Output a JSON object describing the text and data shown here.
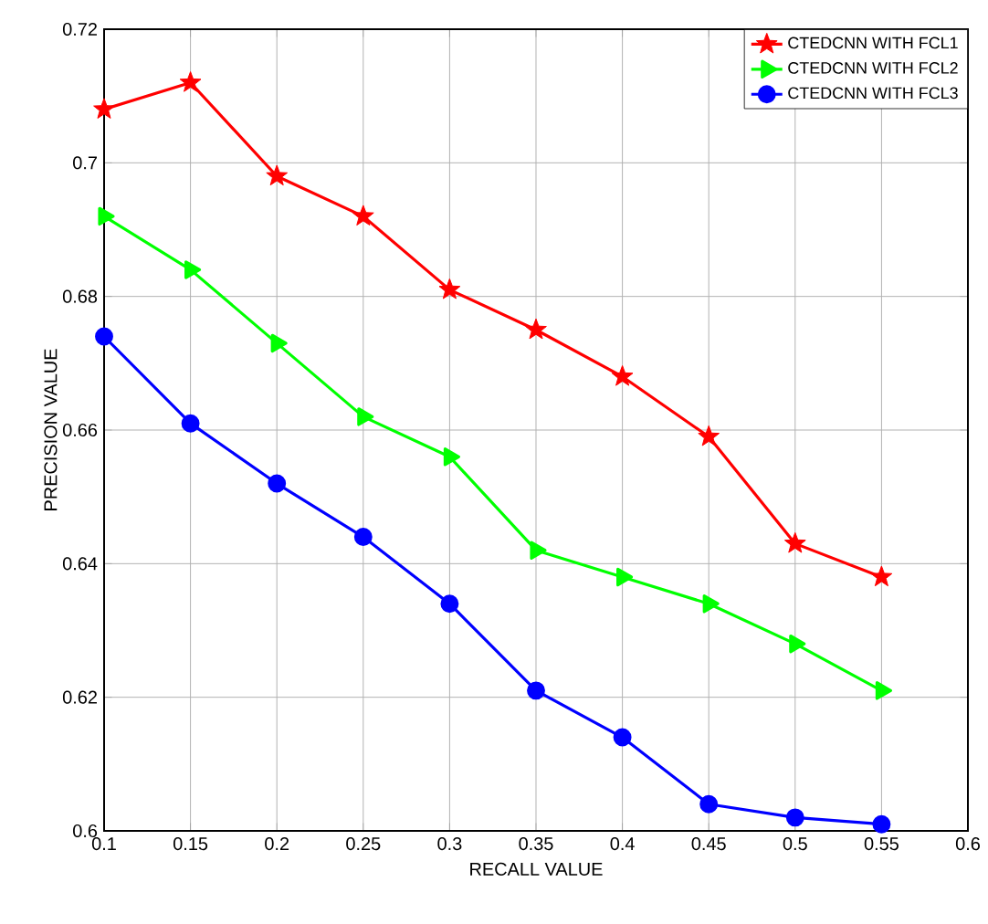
{
  "chart_data": {
    "type": "line",
    "xlabel": "RECALL VALUE",
    "ylabel": "PRECISION VALUE",
    "x": [
      0.1,
      0.15,
      0.2,
      0.25,
      0.3,
      0.35,
      0.4,
      0.45,
      0.5,
      0.55
    ],
    "series": [
      {
        "name": "CTEDCNN WITH FCL1",
        "color": "#ff0000",
        "marker": "star",
        "values": [
          0.708,
          0.712,
          0.698,
          0.692,
          0.681,
          0.675,
          0.668,
          0.659,
          0.643,
          0.638
        ]
      },
      {
        "name": "CTEDCNN WITH FCL2",
        "color": "#00ff00",
        "marker": "triangle",
        "values": [
          0.692,
          0.684,
          0.673,
          0.662,
          0.656,
          0.642,
          0.638,
          0.634,
          0.628,
          0.621
        ]
      },
      {
        "name": "CTEDCNN WITH FCL3",
        "color": "#0000ff",
        "marker": "circle",
        "values": [
          0.674,
          0.661,
          0.652,
          0.644,
          0.634,
          0.621,
          0.614,
          0.604,
          0.602,
          0.601
        ]
      }
    ],
    "xlim": [
      0.1,
      0.6
    ],
    "ylim": [
      0.6,
      0.72
    ],
    "xticks": [
      0.1,
      0.15,
      0.2,
      0.25,
      0.3,
      0.35,
      0.4,
      0.45,
      0.5,
      0.55,
      0.6
    ],
    "yticks": [
      0.6,
      0.62,
      0.64,
      0.66,
      0.68,
      0.7,
      0.72
    ],
    "grid": true,
    "legend": "top right",
    "line_style": "solid"
  }
}
